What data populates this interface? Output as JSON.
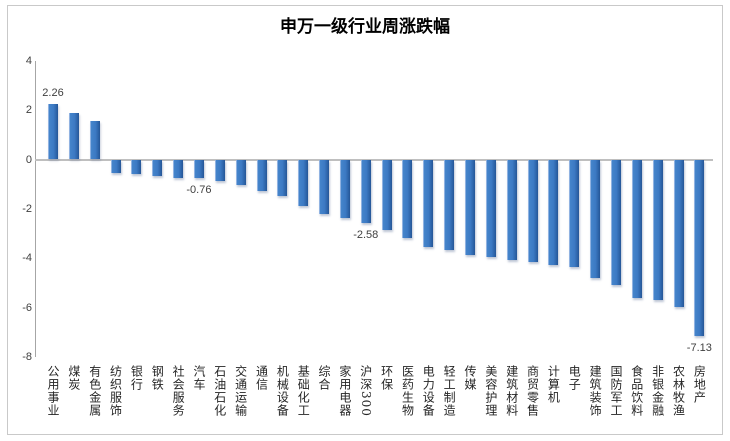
{
  "page": {
    "background": "#ffffff",
    "frame_border_color": "#c9c9c9"
  },
  "chart_data": {
    "type": "bar",
    "title": "申万一级行业周涨跌幅",
    "xlabel": "",
    "ylabel": "",
    "grid": false,
    "legend": null,
    "ylim": [
      -8,
      4
    ],
    "yticks": [
      "4",
      "2",
      "0",
      "-2",
      "-4",
      "-6",
      "-8"
    ],
    "ytick_values": [
      4,
      2,
      0,
      -2,
      -4,
      -6,
      -8
    ],
    "categories": [
      "公用事业",
      "煤炭",
      "有色金属",
      "纺织服饰",
      "银行",
      "钢铁",
      "社会服务",
      "汽车",
      "石油石化",
      "交通运输",
      "通信",
      "机械设备",
      "基础化工",
      "综合",
      "家用电器",
      "沪深300",
      "环保",
      "医药生物",
      "电力设备",
      "轻工制造",
      "传媒",
      "美容护理",
      "建筑材料",
      "商贸零售",
      "计算机",
      "电子",
      "建筑装饰",
      "国防军工",
      "食品饮料",
      "非银金融",
      "农林牧渔",
      "房地产"
    ],
    "values": [
      2.26,
      1.9,
      1.55,
      -0.53,
      -0.6,
      -0.67,
      -0.73,
      -0.76,
      -0.86,
      -1.04,
      -1.27,
      -1.47,
      -1.89,
      -2.21,
      -2.35,
      -2.58,
      -2.85,
      -3.18,
      -3.55,
      -3.68,
      -3.85,
      -3.94,
      -4.06,
      -4.16,
      -4.26,
      -4.37,
      -4.78,
      -5.08,
      -5.6,
      -5.7,
      -5.99,
      -7.13
    ],
    "data_labels": [
      {
        "index": 0,
        "text": "2.26"
      },
      {
        "index": 7,
        "text": "-0.76"
      },
      {
        "index": 15,
        "text": "-2.58"
      },
      {
        "index": 31,
        "text": "-7.13"
      }
    ],
    "bar_color": "#3a78c2",
    "bar_gradient": [
      "#9ab9e4",
      "#3c7ac4",
      "#255697"
    ],
    "axis_color": "#a6a6a6",
    "zero_line_color": "#bfbfbf",
    "tick_label_color": "#404040",
    "data_label_color": "#404040",
    "category_label_color": "#262626",
    "title_color": "#000000"
  }
}
